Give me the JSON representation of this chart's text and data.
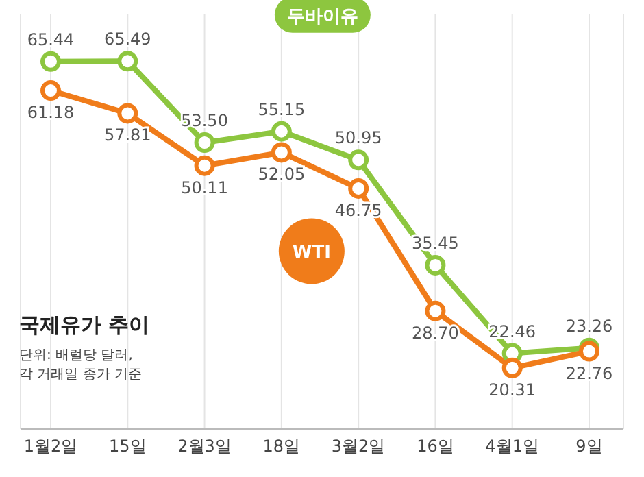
{
  "chart_data": {
    "type": "line",
    "title": "국제유가 추이",
    "annotations": [
      "단위: 배럴당 달러,",
      "각 거래일 종가 기준"
    ],
    "categories": [
      "1월2일",
      "15일",
      "2월3일",
      "18일",
      "3월2일",
      "16일",
      "4월1일",
      "9일"
    ],
    "series": [
      {
        "name": "두바이유",
        "color": "#8dc63f",
        "values": [
          65.44,
          65.49,
          53.5,
          55.15,
          50.95,
          35.45,
          22.46,
          23.26
        ],
        "value_labels": [
          "65.44",
          "65.49",
          "53.50",
          "55.15",
          "50.95",
          "35.45",
          "22.46",
          "23.26"
        ]
      },
      {
        "name": "WTI",
        "color": "#f07c1a",
        "values": [
          61.18,
          57.81,
          50.11,
          52.05,
          46.75,
          28.7,
          20.31,
          22.76
        ],
        "value_labels": [
          "61.18",
          "57.81",
          "50.11",
          "52.05",
          "46.75",
          "28.70",
          "20.31",
          "22.76"
        ]
      }
    ],
    "marker": "circle",
    "line_style": "solid",
    "grid": "x"
  }
}
